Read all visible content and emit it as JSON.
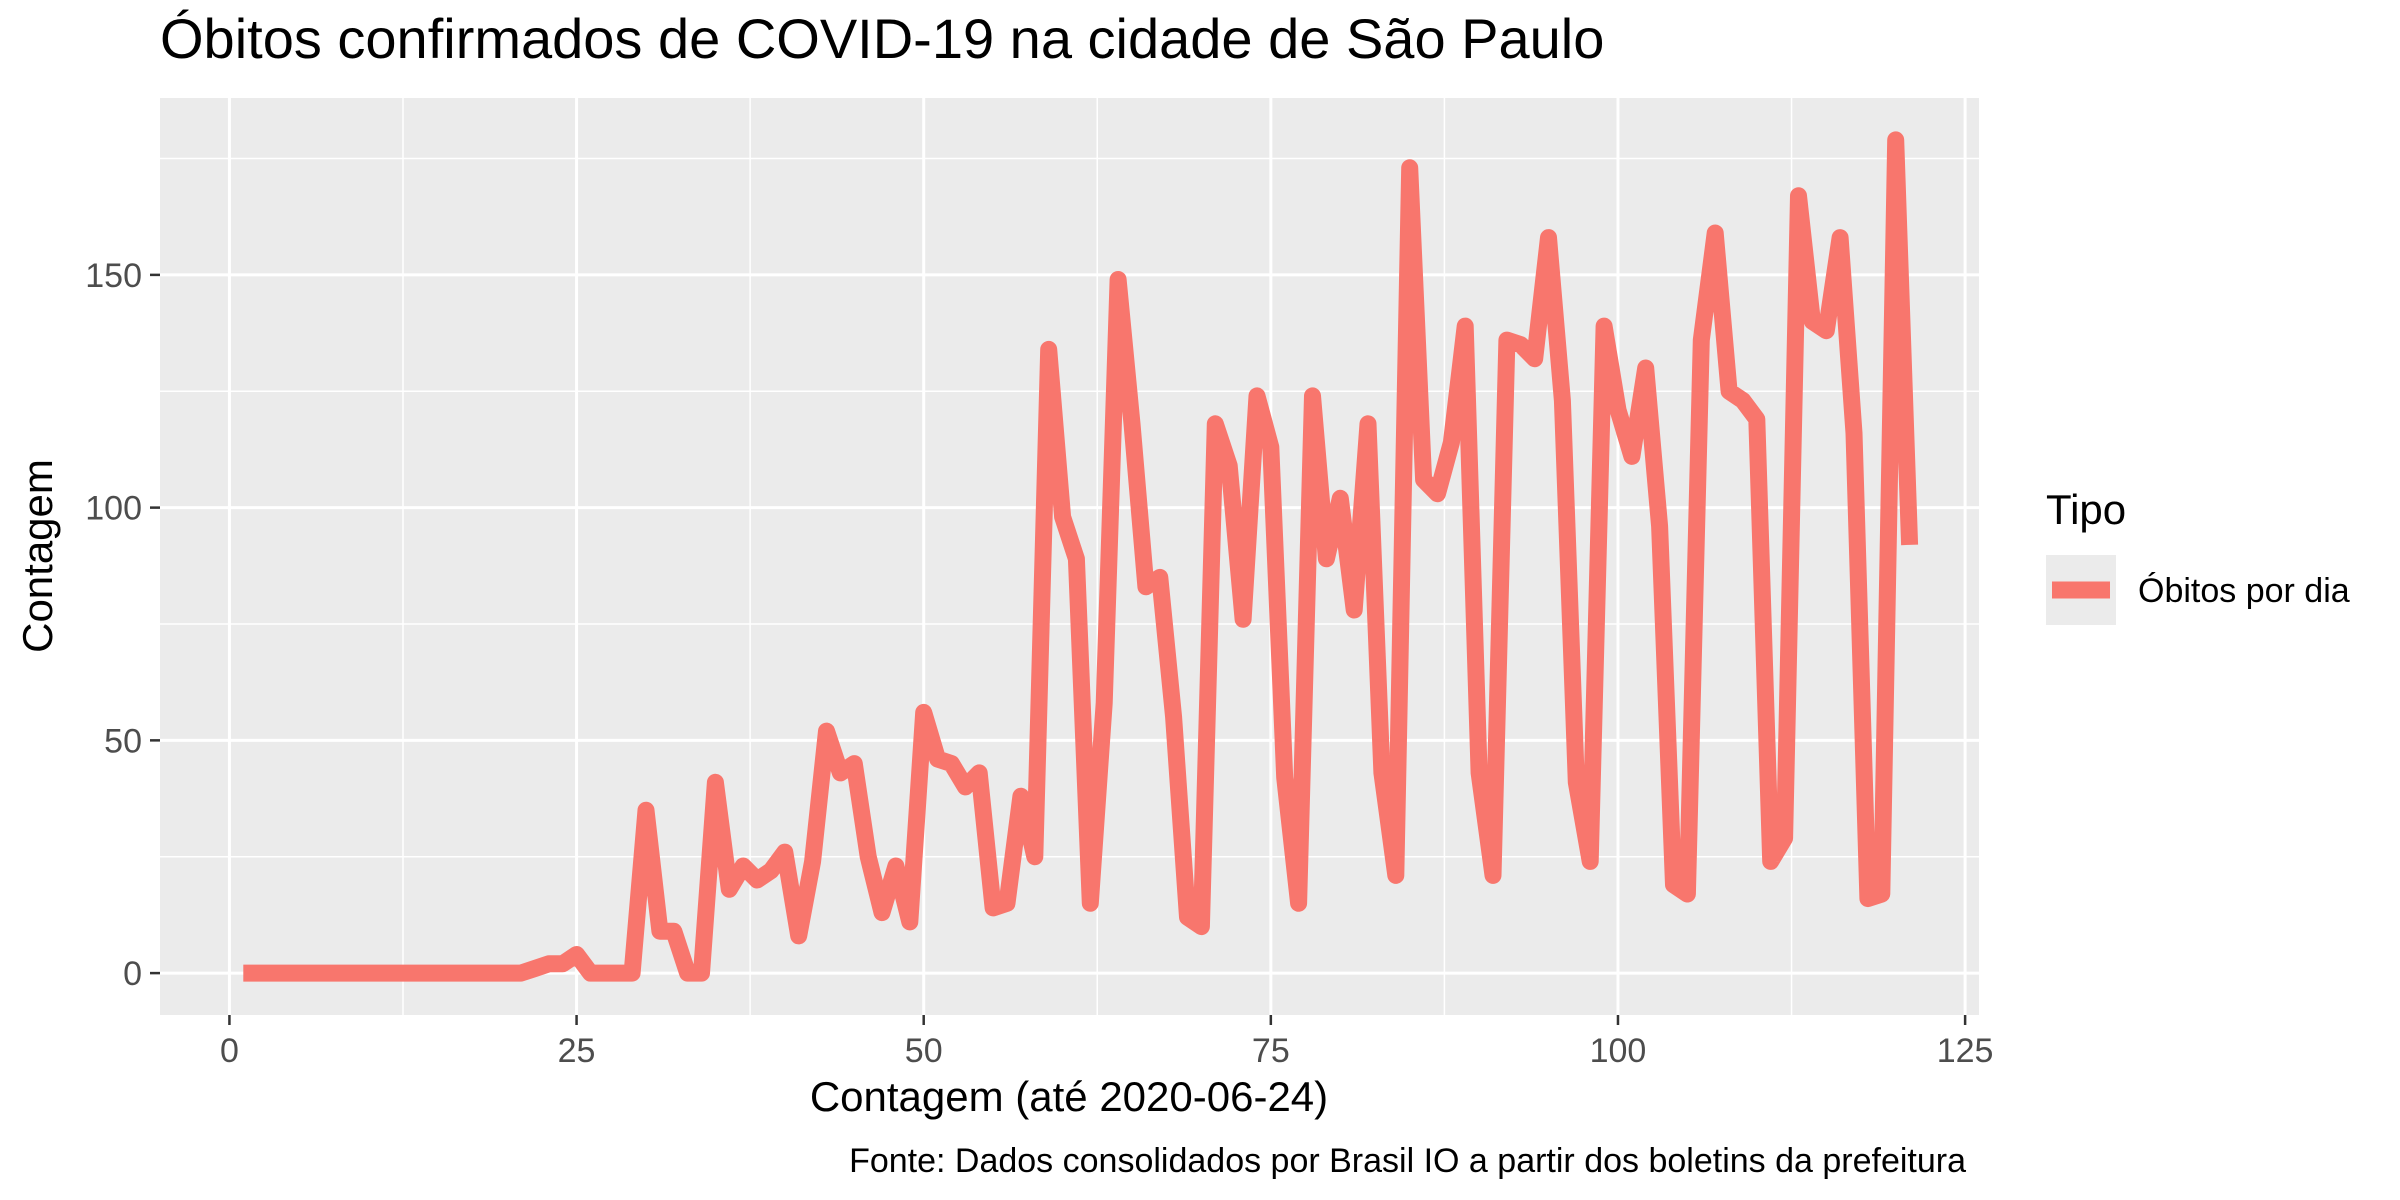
{
  "chart_data": {
    "type": "line",
    "title": "Óbitos confirmados de COVID-19 na cidade de São Paulo",
    "xlabel": "Contagem (até 2020-06-24)",
    "ylabel": "Contagem",
    "caption": "Fonte: Dados consolidados por Brasil IO a partir dos boletins da prefeitura",
    "xlim": [
      -5,
      126
    ],
    "ylim": [
      -9,
      188
    ],
    "x_ticks": [
      0,
      25,
      50,
      75,
      100,
      125
    ],
    "y_ticks": [
      0,
      50,
      100,
      150
    ],
    "grid": true,
    "legend": {
      "title": "Tipo",
      "position": "right"
    },
    "colors": {
      "series": "#F8766D",
      "panel": "#EBEBEB",
      "grid": "#FFFFFF",
      "text": "#000000",
      "tick_text": "#4D4D4D"
    },
    "series": [
      {
        "name": "Óbitos por dia",
        "x": [
          1,
          2,
          3,
          4,
          5,
          6,
          7,
          8,
          9,
          10,
          11,
          12,
          13,
          14,
          15,
          16,
          17,
          18,
          19,
          20,
          21,
          22,
          23,
          24,
          25,
          26,
          27,
          28,
          29,
          30,
          31,
          32,
          33,
          34,
          35,
          36,
          37,
          38,
          39,
          40,
          41,
          42,
          43,
          44,
          45,
          46,
          47,
          48,
          49,
          50,
          51,
          52,
          53,
          54,
          55,
          56,
          57,
          58,
          59,
          60,
          61,
          62,
          63,
          64,
          65,
          66,
          67,
          68,
          69,
          70,
          71,
          72,
          73,
          74,
          75,
          76,
          77,
          78,
          79,
          80,
          81,
          82,
          83,
          84,
          85,
          86,
          87,
          88,
          89,
          90,
          91,
          92,
          93,
          94,
          95,
          96,
          97,
          98,
          99,
          100,
          101,
          102,
          103,
          104,
          105,
          106,
          107,
          108,
          109,
          110,
          111,
          112,
          113,
          114,
          115,
          116,
          117,
          118,
          119,
          120,
          121
        ],
        "values": [
          0,
          0,
          0,
          0,
          0,
          0,
          0,
          0,
          0,
          0,
          0,
          0,
          0,
          0,
          0,
          0,
          0,
          0,
          0,
          0,
          0,
          1,
          2,
          2,
          4,
          0,
          0,
          0,
          0,
          35,
          9,
          9,
          0,
          0,
          41,
          18,
          23,
          20,
          22,
          26,
          8,
          24,
          52,
          43,
          45,
          25,
          13,
          23,
          11,
          56,
          46,
          45,
          40,
          43,
          14,
          15,
          38,
          25,
          134,
          98,
          89,
          15,
          58,
          149,
          118,
          83,
          85,
          55,
          12,
          10,
          118,
          109,
          76,
          124,
          113,
          42,
          15,
          124,
          89,
          102,
          78,
          118,
          43,
          21,
          173,
          106,
          103,
          114,
          139,
          43,
          21,
          136,
          135,
          132,
          158,
          123,
          41,
          24,
          139,
          121,
          111,
          130,
          96,
          19,
          17,
          136,
          159,
          125,
          123,
          119,
          24,
          29,
          167,
          140,
          138,
          158,
          116,
          16,
          17,
          179,
          92
        ]
      }
    ]
  }
}
